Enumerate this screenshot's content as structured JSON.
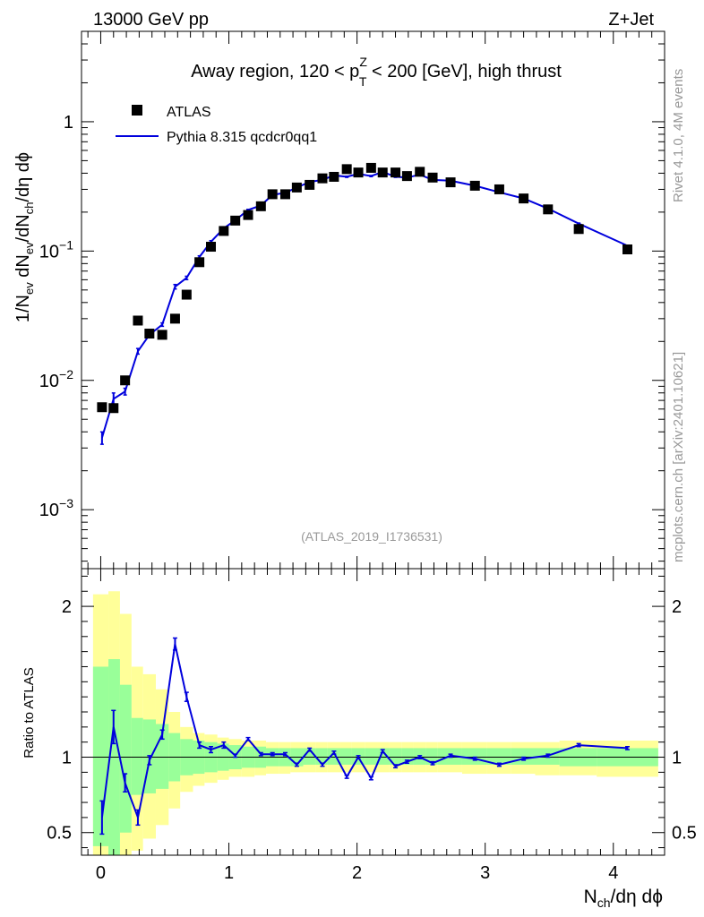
{
  "header": {
    "left": "13000 GeV pp",
    "right": "Z+Jet"
  },
  "title": {
    "prefix": "Away region, 120 < p",
    "sup": "Z",
    "sub": "T",
    "suffix": " < 200 [GeV], high thrust"
  },
  "side_labels": {
    "rivet": "Rivet 4.1.0,  4M events",
    "mcplots": "mcplots.cern.ch [arXiv:2401.10621]"
  },
  "analysis_id": "(ATLAS_2019_I1736531)",
  "legend": {
    "data_label": "ATLAS",
    "mc_label": "Pythia 8.315 qcdcr0qq1"
  },
  "colors": {
    "mc": "#0000dd",
    "band_inner": "#99ff99",
    "band_outer": "#ffff99",
    "data": "#000000"
  },
  "chart_data": [
    {
      "type": "scatter",
      "panel": "main",
      "yscale": "log",
      "xlabel_main": "N",
      "xlabel_sub": "ch",
      "xlabel_rest": "/dη dϕ",
      "ylabel": "1/N_ev dN_ev/dN_ch/dη dϕ",
      "xlim": [
        -0.15,
        4.4
      ],
      "ylim": [
        0.00035,
        5
      ],
      "x_ticks": [
        "0",
        "1",
        "2",
        "3",
        "4"
      ],
      "y_ticks": [
        {
          "value": 0.001,
          "base": "10",
          "exp": "−3"
        },
        {
          "value": 0.01,
          "base": "10",
          "exp": "−2"
        },
        {
          "value": 0.1,
          "base": "10",
          "exp": "−1"
        },
        {
          "value": 1,
          "base": "1",
          "exp": ""
        }
      ],
      "series": [
        {
          "name": "ATLAS",
          "marker": "square",
          "x": [
            0.01,
            0.1,
            0.19,
            0.29,
            0.38,
            0.48,
            0.58,
            0.67,
            0.77,
            0.86,
            0.96,
            1.05,
            1.15,
            1.25,
            1.34,
            1.44,
            1.53,
            1.63,
            1.73,
            1.82,
            1.92,
            2.01,
            2.11,
            2.2,
            2.3,
            2.39,
            2.49,
            2.59,
            2.73,
            2.92,
            3.11,
            3.3,
            3.49,
            3.73,
            4.11
          ],
          "values": [
            0.0062,
            0.0061,
            0.01,
            0.029,
            0.023,
            0.0225,
            0.03,
            0.046,
            0.082,
            0.108,
            0.143,
            0.172,
            0.19,
            0.222,
            0.275,
            0.275,
            0.31,
            0.325,
            0.365,
            0.375,
            0.43,
            0.405,
            0.44,
            0.405,
            0.405,
            0.38,
            0.41,
            0.37,
            0.34,
            0.32,
            0.3,
            0.255,
            0.21,
            0.148,
            0.103
          ]
        },
        {
          "name": "Pythia 8.315 qcdcr0qq1",
          "marker": "line",
          "x": [
            0.01,
            0.1,
            0.19,
            0.29,
            0.38,
            0.48,
            0.58,
            0.67,
            0.77,
            0.86,
            0.96,
            1.05,
            1.15,
            1.25,
            1.34,
            1.44,
            1.53,
            1.63,
            1.73,
            1.82,
            1.92,
            2.01,
            2.11,
            2.2,
            2.3,
            2.39,
            2.49,
            2.59,
            2.73,
            2.92,
            3.11,
            3.3,
            3.49,
            3.73,
            4.11
          ],
          "values": [
            0.0036,
            0.0072,
            0.0082,
            0.0168,
            0.0225,
            0.027,
            0.053,
            0.062,
            0.09,
            0.118,
            0.15,
            0.173,
            0.208,
            0.225,
            0.272,
            0.282,
            0.31,
            0.342,
            0.355,
            0.385,
            0.375,
            0.395,
            0.38,
            0.41,
            0.375,
            0.37,
            0.39,
            0.355,
            0.35,
            0.32,
            0.285,
            0.255,
            0.213,
            0.163,
            0.11
          ]
        }
      ]
    },
    {
      "type": "line",
      "panel": "ratio",
      "ylabel": "Ratio to ATLAS",
      "xlim": [
        -0.15,
        4.4
      ],
      "ylim": [
        0.35,
        2.25
      ],
      "y_ticks": [
        "0.5",
        "1",
        "2"
      ],
      "y_tick_values": [
        0.5,
        1,
        2
      ],
      "ratio": {
        "x": [
          0.01,
          0.1,
          0.19,
          0.29,
          0.38,
          0.48,
          0.58,
          0.67,
          0.77,
          0.86,
          0.96,
          1.05,
          1.15,
          1.25,
          1.34,
          1.44,
          1.53,
          1.63,
          1.73,
          1.82,
          1.92,
          2.01,
          2.11,
          2.2,
          2.3,
          2.39,
          2.49,
          2.59,
          2.73,
          2.92,
          3.11,
          3.3,
          3.49,
          3.73,
          4.11
        ],
        "values": [
          0.6,
          1.2,
          0.83,
          0.6,
          0.98,
          1.15,
          1.75,
          1.4,
          1.08,
          1.05,
          1.08,
          1.01,
          1.12,
          1.02,
          1.02,
          1.02,
          0.95,
          1.05,
          0.95,
          1.03,
          0.87,
          1.0,
          0.86,
          1.04,
          0.94,
          0.97,
          1.0,
          0.96,
          1.01,
          0.99,
          0.95,
          0.99,
          1.01,
          1.08,
          1.06
        ],
        "errors": [
          0.11,
          0.11,
          0.06,
          0.05,
          0.03,
          0.03,
          0.04,
          0.03,
          0.02,
          0.02,
          0.02,
          0.01,
          0.01,
          0.01,
          0.01,
          0.01,
          0.01,
          0.01,
          0.01,
          0.01,
          0.01,
          0.01,
          0.01,
          0.01,
          0.01,
          0.01,
          0.01,
          0.01,
          0.01,
          0.01,
          0.01,
          0.01,
          0.01,
          0.01,
          0.01
        ]
      },
      "bands": {
        "edges": [
          -0.06,
          0.06,
          0.15,
          0.24,
          0.33,
          0.43,
          0.53,
          0.62,
          0.72,
          0.81,
          0.91,
          1.0,
          1.1,
          1.2,
          1.29,
          1.39,
          1.48,
          1.58,
          1.68,
          1.77,
          1.87,
          1.96,
          2.06,
          2.16,
          2.25,
          2.35,
          2.44,
          2.54,
          2.63,
          2.82,
          3.01,
          3.2,
          3.39,
          3.58,
          3.87,
          4.35
        ],
        "inner_lo": [
          0.41,
          0.34,
          0.5,
          0.75,
          0.76,
          0.79,
          0.84,
          0.88,
          0.89,
          0.9,
          0.91,
          0.92,
          0.93,
          0.93,
          0.94,
          0.94,
          0.94,
          0.95,
          0.95,
          0.95,
          0.95,
          0.95,
          0.95,
          0.95,
          0.95,
          0.95,
          0.95,
          0.95,
          0.95,
          0.95,
          0.95,
          0.95,
          0.95,
          0.94,
          0.94
        ],
        "inner_hi": [
          1.6,
          1.65,
          1.48,
          1.26,
          1.25,
          1.22,
          1.16,
          1.12,
          1.11,
          1.1,
          1.09,
          1.08,
          1.07,
          1.07,
          1.06,
          1.06,
          1.06,
          1.06,
          1.06,
          1.06,
          1.06,
          1.06,
          1.06,
          1.06,
          1.06,
          1.06,
          1.06,
          1.06,
          1.06,
          1.06,
          1.06,
          1.06,
          1.06,
          1.06,
          1.06
        ],
        "outer_lo": [
          0.35,
          0.35,
          0.35,
          0.38,
          0.46,
          0.55,
          0.66,
          0.77,
          0.81,
          0.83,
          0.85,
          0.87,
          0.87,
          0.88,
          0.89,
          0.89,
          0.9,
          0.9,
          0.9,
          0.9,
          0.9,
          0.9,
          0.9,
          0.9,
          0.9,
          0.9,
          0.9,
          0.9,
          0.9,
          0.89,
          0.89,
          0.89,
          0.88,
          0.88,
          0.87
        ],
        "outer_hi": [
          2.08,
          2.1,
          1.95,
          1.6,
          1.55,
          1.45,
          1.3,
          1.2,
          1.16,
          1.15,
          1.13,
          1.12,
          1.11,
          1.11,
          1.1,
          1.1,
          1.1,
          1.1,
          1.1,
          1.1,
          1.1,
          1.1,
          1.1,
          1.1,
          1.1,
          1.1,
          1.1,
          1.1,
          1.1,
          1.1,
          1.1,
          1.1,
          1.1,
          1.11,
          1.11
        ]
      }
    }
  ]
}
